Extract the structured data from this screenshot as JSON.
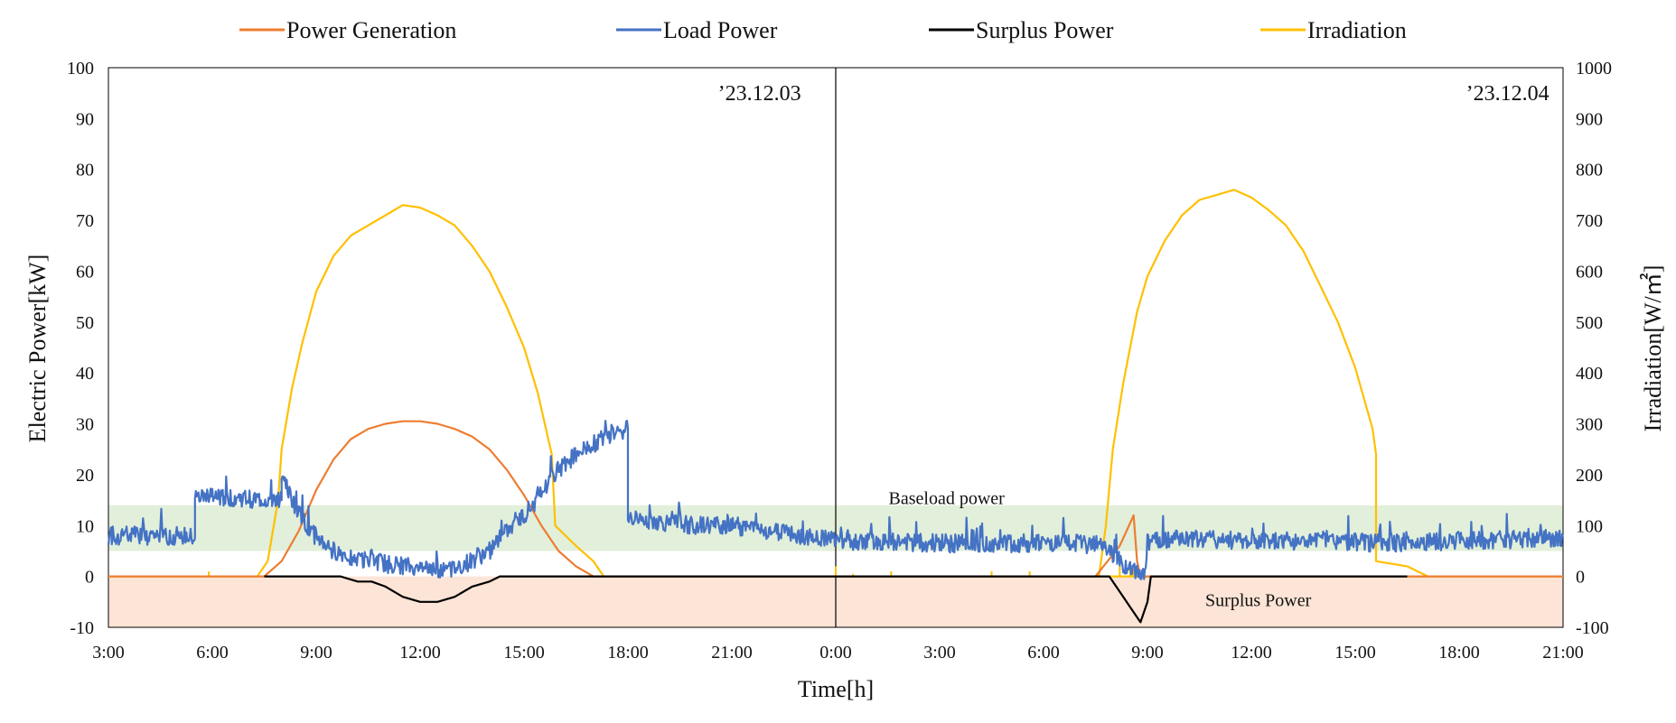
{
  "chart_data": {
    "type": "line",
    "legend": {
      "position": "top",
      "items": [
        {
          "name": "Power Generation",
          "color": "#ED7D31"
        },
        {
          "name": "Load Power",
          "color": "#4472C4"
        },
        {
          "name": "Surplus Power",
          "color": "#000000"
        },
        {
          "name": "Irradiation",
          "color": "#FFC000"
        }
      ]
    },
    "xlabel": "Time[h]",
    "ylabel_left": "Electric Power[kW]",
    "ylabel_right": "Irradiation[W/㎡]",
    "x_unit": "hours since 3:00 on '23.12.03",
    "xlim": [
      0,
      42
    ],
    "ylim_left": [
      -10,
      100
    ],
    "ylim_right": [
      -100,
      1000
    ],
    "x_ticks": [
      {
        "x": 0,
        "label": "3:00"
      },
      {
        "x": 3,
        "label": "6:00"
      },
      {
        "x": 6,
        "label": "9:00"
      },
      {
        "x": 9,
        "label": "12:00"
      },
      {
        "x": 12,
        "label": "15:00"
      },
      {
        "x": 15,
        "label": "18:00"
      },
      {
        "x": 18,
        "label": "21:00"
      },
      {
        "x": 21,
        "label": "0:00"
      },
      {
        "x": 24,
        "label": "3:00"
      },
      {
        "x": 27,
        "label": "6:00"
      },
      {
        "x": 30,
        "label": "9:00"
      },
      {
        "x": 33,
        "label": "12:00"
      },
      {
        "x": 36,
        "label": "15:00"
      },
      {
        "x": 39,
        "label": "18:00"
      },
      {
        "x": 42,
        "label": "21:00"
      }
    ],
    "y_ticks_left": [
      "-10",
      "0",
      "10",
      "20",
      "30",
      "40",
      "50",
      "60",
      "70",
      "80",
      "90",
      "100"
    ],
    "y_ticks_right": [
      "-100",
      "0",
      "100",
      "200",
      "300",
      "400",
      "500",
      "600",
      "700",
      "800",
      "900",
      "1000"
    ],
    "day_divider_x": 21,
    "dates": [
      {
        "label": "’23.12.03",
        "x": 20.0
      },
      {
        "label": "’23.12.04",
        "x": 41.6
      }
    ],
    "bands": [
      {
        "name": "Baseload power",
        "y_range": [
          5,
          14
        ],
        "color": "#E2EFDA",
        "label": "Baseload power",
        "label_x": 24.2,
        "label_y": 15
      },
      {
        "name": "Surplus Power",
        "y_range": [
          -10,
          0
        ],
        "color": "#FCE4D6",
        "label": "Surplus Power",
        "label_x": 33.2,
        "label_y": -5
      }
    ],
    "series": [
      {
        "name": "Irradiation",
        "axis": "right",
        "color": "#FFC000",
        "points": [
          [
            0,
            0
          ],
          [
            4.3,
            0
          ],
          [
            4.6,
            30
          ],
          [
            4.9,
            150
          ],
          [
            5.0,
            250
          ],
          [
            5.3,
            370
          ],
          [
            5.6,
            460
          ],
          [
            6.0,
            560
          ],
          [
            6.5,
            630
          ],
          [
            7.0,
            670
          ],
          [
            7.5,
            690
          ],
          [
            8.0,
            710
          ],
          [
            8.5,
            730
          ],
          [
            9.0,
            725
          ],
          [
            9.5,
            710
          ],
          [
            10.0,
            690
          ],
          [
            10.5,
            650
          ],
          [
            11.0,
            600
          ],
          [
            11.5,
            530
          ],
          [
            12.0,
            450
          ],
          [
            12.4,
            360
          ],
          [
            12.8,
            240
          ],
          [
            12.9,
            100
          ],
          [
            13.5,
            60
          ],
          [
            14.0,
            30
          ],
          [
            14.3,
            0
          ],
          [
            42,
            0
          ]
        ],
        "spikes": [
          [
            2.9,
            10
          ],
          [
            21,
            20
          ],
          [
            21.5,
            5
          ],
          [
            22.6,
            10
          ],
          [
            25.5,
            10
          ],
          [
            26.6,
            10
          ],
          [
            29.2,
            20
          ],
          [
            29.5,
            20
          ],
          [
            29.6,
            15
          ]
        ]
      },
      {
        "name": "Irradiation",
        "axis": "right",
        "color": "#FFC000",
        "points": [
          [
            28.6,
            0
          ],
          [
            28.8,
            100
          ],
          [
            29.0,
            250
          ],
          [
            29.3,
            380
          ],
          [
            29.7,
            520
          ],
          [
            30.0,
            590
          ],
          [
            30.5,
            660
          ],
          [
            31.0,
            710
          ],
          [
            31.5,
            740
          ],
          [
            32.0,
            750
          ],
          [
            32.5,
            760
          ],
          [
            33.0,
            745
          ],
          [
            33.5,
            720
          ],
          [
            34.0,
            690
          ],
          [
            34.5,
            640
          ],
          [
            35.0,
            570
          ],
          [
            35.5,
            500
          ],
          [
            36.0,
            410
          ],
          [
            36.5,
            290
          ],
          [
            36.6,
            240
          ],
          [
            36.6,
            30
          ],
          [
            37.5,
            20
          ],
          [
            38.1,
            0
          ]
        ]
      },
      {
        "name": "Power Generation",
        "axis": "left",
        "color": "#ED7D31",
        "points": [
          [
            0,
            0
          ],
          [
            4.5,
            0
          ],
          [
            5.0,
            3
          ],
          [
            5.5,
            9
          ],
          [
            6.0,
            17
          ],
          [
            6.5,
            23
          ],
          [
            7.0,
            27
          ],
          [
            7.5,
            29
          ],
          [
            8.0,
            30
          ],
          [
            8.5,
            30.5
          ],
          [
            9.0,
            30.5
          ],
          [
            9.5,
            30
          ],
          [
            10.0,
            29
          ],
          [
            10.5,
            27.5
          ],
          [
            11.0,
            25
          ],
          [
            11.5,
            21
          ],
          [
            12.0,
            16
          ],
          [
            12.5,
            10
          ],
          [
            13.0,
            5
          ],
          [
            13.5,
            2
          ],
          [
            14.0,
            0
          ],
          [
            28.5,
            0
          ],
          [
            29.2,
            6
          ],
          [
            29.6,
            12
          ],
          [
            29.7,
            3
          ],
          [
            29.8,
            0
          ],
          [
            42,
            0
          ]
        ]
      },
      {
        "name": "Surplus Power",
        "axis": "left",
        "color": "#000000",
        "points": [
          [
            4.5,
            0
          ],
          [
            6.7,
            0
          ],
          [
            7.2,
            -1
          ],
          [
            7.6,
            -1
          ],
          [
            8.0,
            -2
          ],
          [
            8.5,
            -4
          ],
          [
            9.0,
            -5
          ],
          [
            9.5,
            -5
          ],
          [
            10.0,
            -4
          ],
          [
            10.5,
            -2
          ],
          [
            11.0,
            -1
          ],
          [
            11.3,
            0
          ],
          [
            28.9,
            0
          ],
          [
            29.2,
            -3
          ],
          [
            29.5,
            -6
          ],
          [
            29.8,
            -9
          ],
          [
            30.0,
            -5
          ],
          [
            30.1,
            0
          ],
          [
            37.5,
            0
          ]
        ]
      },
      {
        "name": "Load Power",
        "axis": "left",
        "color": "#4472C4",
        "points": [
          [
            0,
            8
          ],
          [
            1.0,
            8
          ],
          [
            2.0,
            8
          ],
          [
            2.5,
            7.5
          ],
          [
            2.5,
            15.5
          ],
          [
            3.5,
            15.5
          ],
          [
            4.5,
            15
          ],
          [
            5.0,
            15
          ],
          [
            5.0,
            20
          ],
          [
            5.3,
            15
          ],
          [
            5.8,
            9
          ],
          [
            6.5,
            5
          ],
          [
            7.0,
            4
          ],
          [
            8.0,
            2.5
          ],
          [
            9.0,
            1.5
          ],
          [
            10.0,
            1.5
          ],
          [
            10.5,
            3
          ],
          [
            11.0,
            5
          ],
          [
            11.5,
            9
          ],
          [
            12.0,
            12
          ],
          [
            12.5,
            16
          ],
          [
            13.0,
            21
          ],
          [
            13.5,
            24
          ],
          [
            14.0,
            26
          ],
          [
            14.5,
            28
          ],
          [
            15.0,
            29
          ],
          [
            15.0,
            12
          ],
          [
            16.0,
            10.5
          ],
          [
            17.0,
            10
          ],
          [
            18.0,
            10
          ],
          [
            19.0,
            9
          ],
          [
            20.0,
            8
          ],
          [
            21.0,
            7
          ],
          [
            22.0,
            7
          ],
          [
            24.0,
            6.5
          ],
          [
            26.0,
            6.5
          ],
          [
            28.0,
            6.5
          ],
          [
            28.8,
            6
          ],
          [
            29.2,
            3
          ],
          [
            29.6,
            1
          ],
          [
            29.9,
            0
          ],
          [
            30.0,
            7
          ],
          [
            31.0,
            7.5
          ],
          [
            33.0,
            7
          ],
          [
            35.0,
            7
          ],
          [
            37.0,
            6.5
          ],
          [
            39.0,
            7
          ],
          [
            42.0,
            7.5
          ]
        ],
        "noise_amplitude": 1.8
      }
    ]
  }
}
